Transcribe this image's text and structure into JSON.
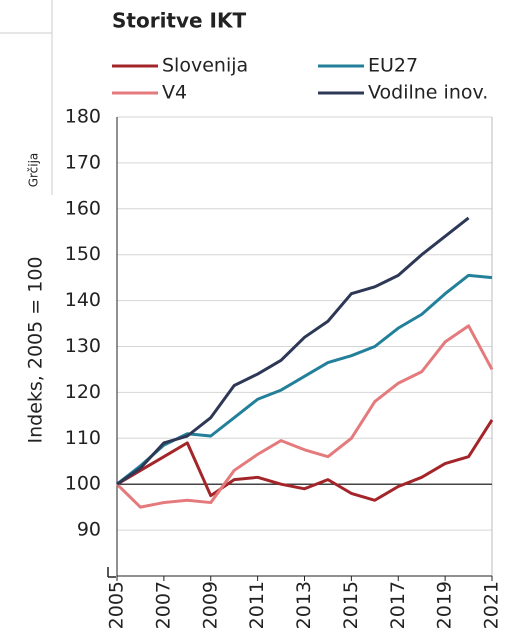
{
  "neighbor_chart": {
    "category": "Grčija"
  },
  "chart_data": {
    "type": "line",
    "title": "Storitve IKT",
    "y_label": "Indeks, 2005 = 100",
    "x": [
      2005,
      2006,
      2007,
      2008,
      2009,
      2010,
      2011,
      2012,
      2013,
      2014,
      2015,
      2016,
      2017,
      2018,
      2019,
      2020,
      2021
    ],
    "series": [
      {
        "name": "Slovenija",
        "color": "#a3252a",
        "values": [
          100,
          103,
          106,
          109,
          97.5,
          101,
          101.5,
          100,
          99,
          101,
          98,
          96.5,
          99.5,
          101.5,
          104.5,
          106,
          114
        ]
      },
      {
        "name": "EU27",
        "color": "#23809a",
        "values": [
          100,
          104,
          108.5,
          111,
          110.5,
          114.5,
          118.5,
          120.5,
          123.5,
          126.5,
          128,
          130,
          134,
          137,
          141.5,
          145.5,
          145
        ]
      },
      {
        "name": "V4",
        "color": "#e47a7c",
        "values": [
          100,
          95,
          96,
          96.5,
          96,
          103,
          106.5,
          109.5,
          107.5,
          106,
          110,
          118,
          122,
          124.5,
          131,
          134.5,
          125
        ]
      },
      {
        "name": "Vodilne inov.",
        "color": "#2d3857",
        "values": [
          100,
          103.5,
          109,
          110.5,
          114.5,
          121.5,
          124,
          127,
          132,
          135.5,
          141.5,
          143,
          145.5,
          150,
          154,
          158,
          null
        ]
      }
    ],
    "xlim": [
      2005,
      2021
    ],
    "xticks": [
      2005,
      2007,
      2009,
      2011,
      2013,
      2015,
      2017,
      2019,
      2021
    ],
    "ylim": [
      80,
      180
    ],
    "yticks": [
      90,
      100,
      110,
      120,
      130,
      140,
      150,
      160,
      170,
      180
    ],
    "reference_line": 100,
    "grid": true
  }
}
